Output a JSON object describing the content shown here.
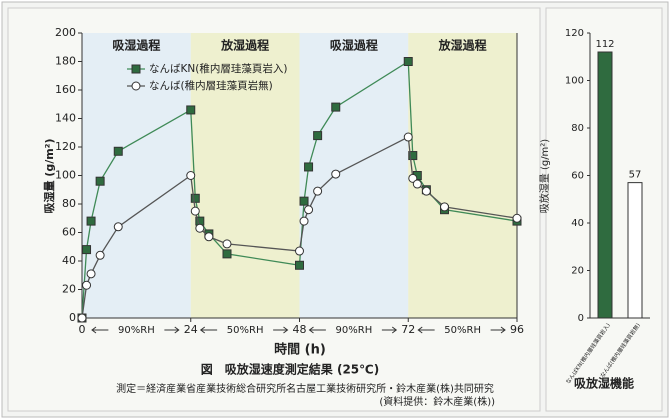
{
  "chart_data": [
    {
      "type": "line",
      "y_label": "吸湿量 (g/m²)",
      "x_label": "時間 (h)",
      "caption": "図　吸放湿速度測定結果 (25℃)",
      "note": [
        "測定＝経済産業省産業技術総合研究所名古屋工業技術研究所・鈴木産業(株)共同研究",
        "(資料提供：鈴木産業(株))"
      ],
      "xlim": [
        0,
        96
      ],
      "ylim": [
        0,
        200
      ],
      "xticks": [
        0,
        24,
        48,
        72,
        96
      ],
      "yticks": [
        0,
        20,
        40,
        60,
        80,
        100,
        120,
        140,
        160,
        180,
        200
      ],
      "legend": "upper-left",
      "regions": [
        {
          "label": "吸湿過程",
          "humidity": "90%RH",
          "range": [
            0,
            24
          ],
          "color": "#e4eef5"
        },
        {
          "label": "放湿過程",
          "humidity": "50%RH",
          "range": [
            24,
            48
          ],
          "color": "#eef0cf"
        },
        {
          "label": "吸湿過程",
          "humidity": "90%RH",
          "range": [
            48,
            72
          ],
          "color": "#e4eef5"
        },
        {
          "label": "放湿過程",
          "humidity": "50%RH",
          "range": [
            72,
            96
          ],
          "color": "#eef0cf"
        }
      ],
      "series": [
        {
          "name": "なんばKN(稚内層珪藻頁岩入)",
          "color": "#3f8a57",
          "marker": "square",
          "marker_fill": "#2f6b3f",
          "x": [
            0,
            1,
            2,
            4,
            8,
            24,
            25,
            26,
            28,
            32,
            48,
            49,
            50,
            52,
            56,
            72,
            73,
            74,
            76,
            80,
            96
          ],
          "values": [
            0,
            48,
            68,
            96,
            117,
            146,
            84,
            68,
            59,
            45,
            37,
            82,
            106,
            128,
            148,
            180,
            114,
            100,
            90,
            76,
            68
          ]
        },
        {
          "name": "なんば(稚内層珪藻頁岩無)",
          "color": "#555555",
          "marker": "circle",
          "marker_fill": "#ffffff",
          "x": [
            0,
            1,
            2,
            4,
            8,
            24,
            25,
            26,
            28,
            32,
            48,
            49,
            50,
            52,
            56,
            72,
            73,
            74,
            76,
            80,
            96
          ],
          "values": [
            0,
            23,
            31,
            44,
            64,
            100,
            75,
            63,
            57,
            52,
            47,
            68,
            76,
            89,
            101,
            127,
            98,
            94,
            89,
            78,
            70
          ]
        }
      ]
    },
    {
      "type": "bar",
      "title": "吸放湿機能",
      "y_label": "吸放湿量 (g/m²)",
      "ylim": [
        0,
        120
      ],
      "yticks": [
        0,
        20,
        40,
        60,
        80,
        100,
        120
      ],
      "categories": [
        "なんばKN(稚内層珪藻頁岩入)",
        "なんば(稚内層珪藻頁岩無)"
      ],
      "values": [
        112,
        57
      ],
      "colors": [
        "#2f6b3f",
        "#ffffff"
      ]
    }
  ]
}
